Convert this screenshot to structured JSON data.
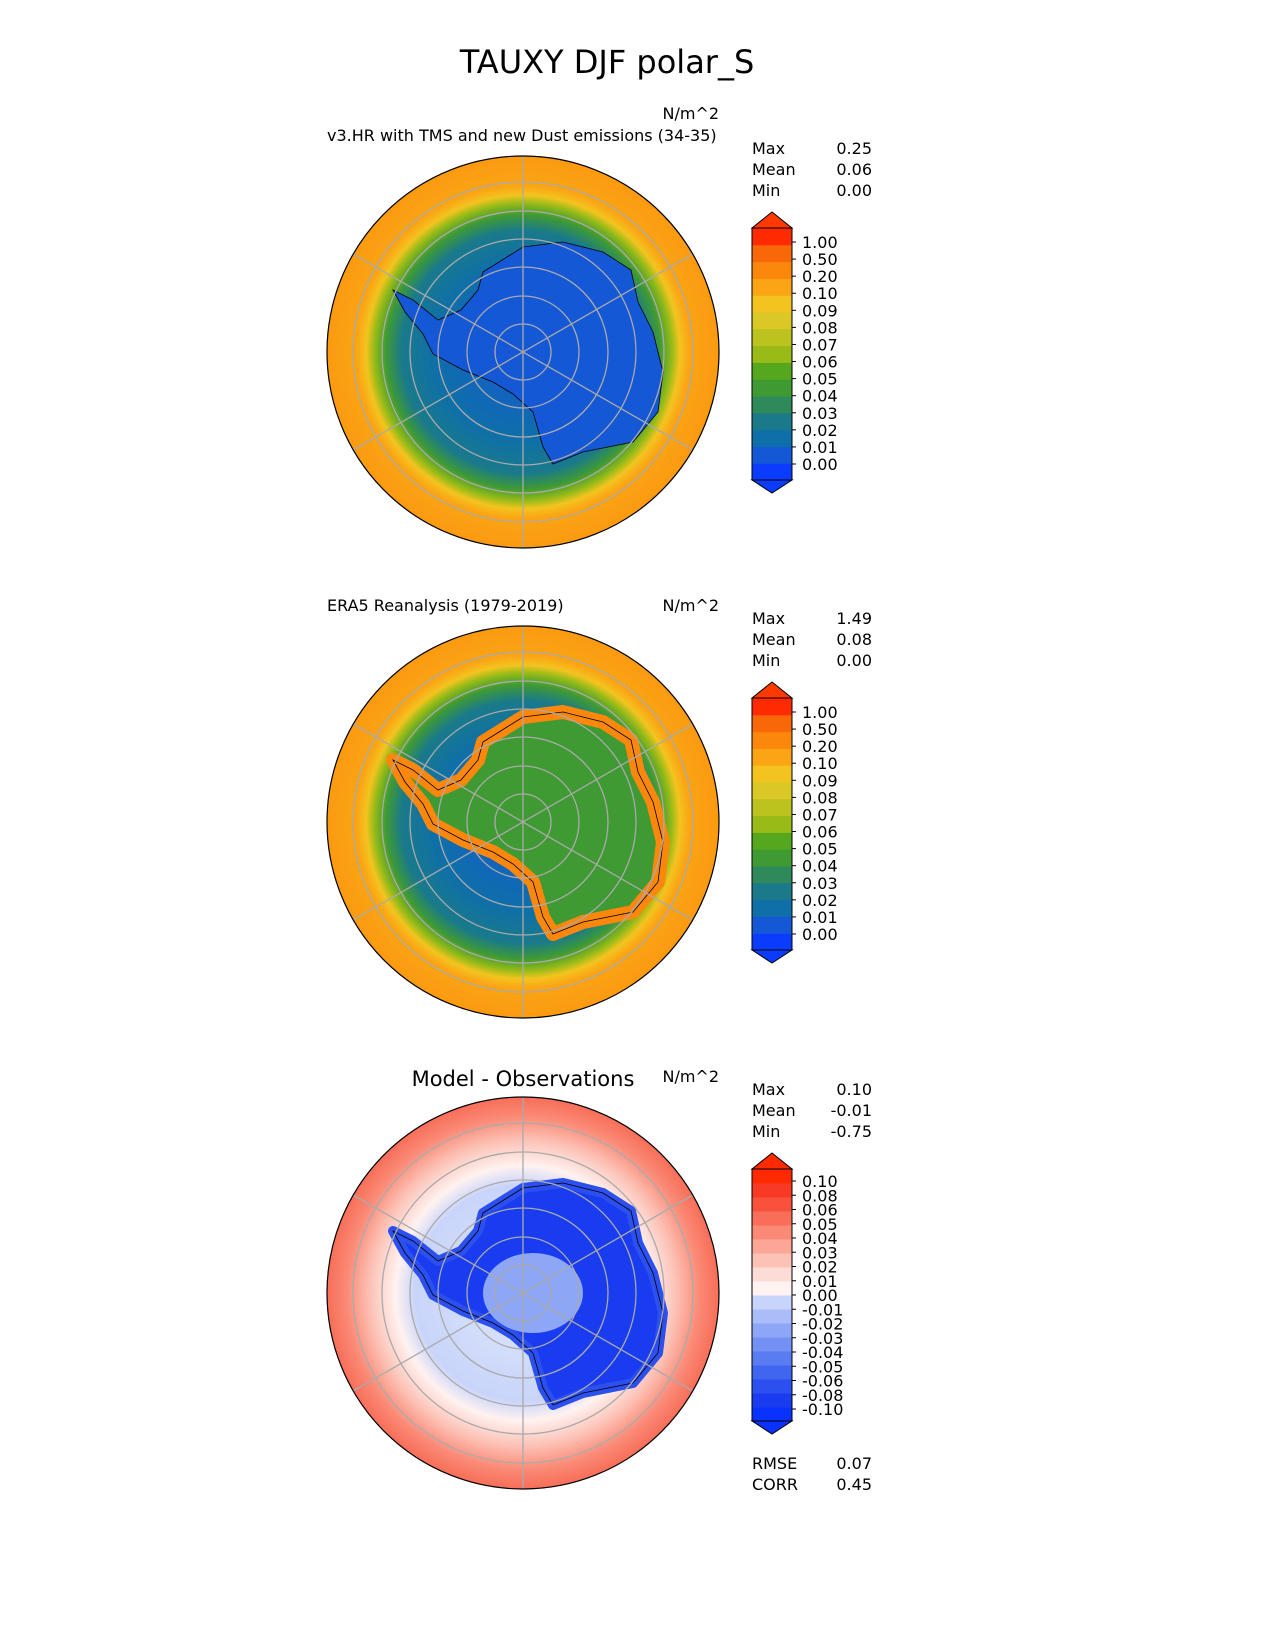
{
  "chart_data": {
    "type": "heatmap",
    "title": "TAUXY DJF polar_S",
    "panels": [
      {
        "id": "test",
        "title": "v3.HR with TMS and new Dust emissions (34-35)",
        "units": "N/m^2",
        "stats": {
          "Max": "0.25",
          "Mean": "0.06",
          "Min": "0.00"
        },
        "colorbar_levels": [
          "0.00",
          "0.01",
          "0.02",
          "0.03",
          "0.04",
          "0.05",
          "0.06",
          "0.07",
          "0.08",
          "0.09",
          "0.10",
          "0.20",
          "0.50",
          "1.00"
        ],
        "colors": [
          "#0a3cff",
          "#1458d6",
          "#0f6fa8",
          "#1a7a8a",
          "#2e8a5a",
          "#3f9a34",
          "#55a81e",
          "#76b316",
          "#98bb18",
          "#bcc21e",
          "#dac826",
          "#f3c420",
          "#fba414",
          "#fb880c",
          "#f86808",
          "#ff2a00",
          "#ff3a00"
        ]
      },
      {
        "id": "reference",
        "title": "ERA5 Reanalysis (1979-2019)",
        "units": "N/m^2",
        "stats": {
          "Max": "1.49",
          "Mean": "0.08",
          "Min": "0.00"
        },
        "colorbar_levels": [
          "0.00",
          "0.01",
          "0.02",
          "0.03",
          "0.04",
          "0.05",
          "0.06",
          "0.07",
          "0.08",
          "0.09",
          "0.10",
          "0.20",
          "0.50",
          "1.00"
        ],
        "colors": [
          "#0a3cff",
          "#1458d6",
          "#0f6fa8",
          "#1a7a8a",
          "#2e8a5a",
          "#3f9a34",
          "#55a81e",
          "#76b316",
          "#98bb18",
          "#bcc21e",
          "#dac826",
          "#f3c420",
          "#fba414",
          "#fb880c",
          "#f86808",
          "#ff2a00",
          "#ff3a00"
        ]
      },
      {
        "id": "diff",
        "title": "Model - Observations",
        "units": "N/m^2",
        "stats": {
          "Max": "0.10",
          "Mean": "-0.01",
          "Min": "-0.75"
        },
        "extra_stats": {
          "RMSE": "0.07",
          "CORR": "0.45"
        },
        "colorbar_levels": [
          "-0.10",
          "-0.08",
          "-0.06",
          "-0.05",
          "-0.04",
          "-0.03",
          "-0.02",
          "-0.01",
          "0.00",
          "0.01",
          "0.02",
          "0.03",
          "0.04",
          "0.05",
          "0.06",
          "0.08",
          "0.10"
        ],
        "colors": [
          "#0a32ff",
          "#1a3cf0",
          "#2c50f0",
          "#4066f0",
          "#5a7cf2",
          "#7490f4",
          "#8ea6f6",
          "#aabdf8",
          "#c8d4fa",
          "#e6ecfc",
          "#fff2f0",
          "#fedcd6",
          "#fcc2b6",
          "#fca696",
          "#fa8a76",
          "#f86e58",
          "#f8523c",
          "#f83a24",
          "#ff2a00",
          "#ff2a00"
        ]
      }
    ]
  }
}
